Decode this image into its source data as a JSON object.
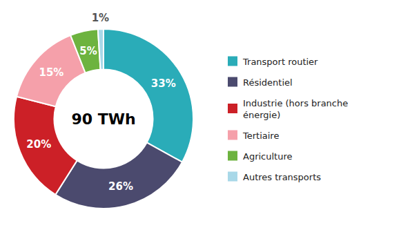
{
  "chart_data": {
    "type": "donut",
    "annotations": [
      "90 TWh"
    ],
    "categories": [
      "Transport routier",
      "Résidentiel",
      "Industrie (hors branche\nénergie)",
      "Tertiaire",
      "Agriculture",
      "Autres transports"
    ],
    "values": [
      33,
      26,
      20,
      15,
      5,
      1
    ],
    "value_labels": [
      "33%",
      "26%",
      "20%",
      "15%",
      "5%",
      "1%"
    ],
    "colors": [
      "#2AACB8",
      "#4B4A6E",
      "#CC2027",
      "#F5A0AA",
      "#6DB33F",
      "#A8D8E8"
    ],
    "data_labels": true,
    "legend": "right"
  }
}
